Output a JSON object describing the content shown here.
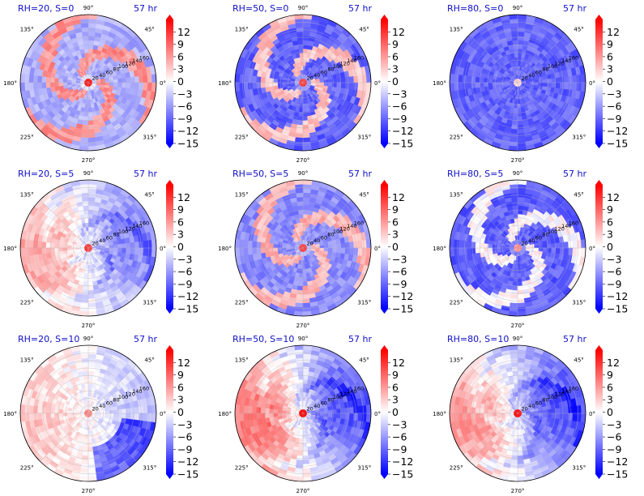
{
  "figure": {
    "time_label": "57 hr",
    "angle_labels": [
      "90°",
      "45°",
      "0°",
      "315°",
      "270°",
      "225°",
      "180°",
      "135°"
    ],
    "radial_labels": [
      "20",
      "40",
      "60",
      "80",
      "100",
      "120",
      "140",
      "160"
    ],
    "colorbar_ticks": [
      "12",
      "9",
      "6",
      "3",
      "0",
      "−3",
      "−6",
      "−9",
      "−12",
      "−15"
    ],
    "colormap": {
      "low": "#0000ff",
      "mid": "#ffffff",
      "high": "#ff0000"
    }
  },
  "chart_data": [
    {
      "type": "heatmap",
      "title": "RH=20, S=0",
      "rh": 20,
      "shear": 0,
      "time": "57 hr",
      "r_range": [
        0,
        180
      ],
      "colorbar_range": [
        -15,
        15
      ],
      "pattern": "spiral",
      "mean": -2,
      "amp": 7
    },
    {
      "type": "heatmap",
      "title": "RH=50, S=0",
      "rh": 50,
      "shear": 0,
      "time": "57 hr",
      "r_range": [
        0,
        180
      ],
      "colorbar_range": [
        -15,
        15
      ],
      "pattern": "spiral",
      "mean": -6,
      "amp": 8
    },
    {
      "type": "heatmap",
      "title": "RH=80, S=0",
      "rh": 80,
      "shear": 0,
      "time": "57 hr",
      "r_range": [
        0,
        180
      ],
      "colorbar_range": [
        -15,
        15
      ],
      "pattern": "core",
      "mean": -9,
      "amp": 5
    },
    {
      "type": "heatmap",
      "title": "RH=20, S=5",
      "rh": 20,
      "shear": 5,
      "time": "57 hr",
      "r_range": [
        0,
        180
      ],
      "colorbar_range": [
        -15,
        15
      ],
      "pattern": "dipole",
      "mean": -1,
      "amp": 6
    },
    {
      "type": "heatmap",
      "title": "RH=50, S=5",
      "rh": 50,
      "shear": 5,
      "time": "57 hr",
      "r_range": [
        0,
        180
      ],
      "colorbar_range": [
        -15,
        15
      ],
      "pattern": "spiral",
      "mean": -4,
      "amp": 7
    },
    {
      "type": "heatmap",
      "title": "RH=80, S=5",
      "rh": 80,
      "shear": 5,
      "time": "57 hr",
      "r_range": [
        0,
        180
      ],
      "colorbar_range": [
        -15,
        15
      ],
      "pattern": "spiral",
      "mean": -7,
      "amp": 6
    },
    {
      "type": "heatmap",
      "title": "RH=20, S=10",
      "rh": 20,
      "shear": 10,
      "time": "57 hr",
      "r_range": [
        0,
        180
      ],
      "colorbar_range": [
        -15,
        15
      ],
      "pattern": "weakdipole",
      "mean": 0,
      "amp": 3
    },
    {
      "type": "heatmap",
      "title": "RH=50, S=10",
      "rh": 50,
      "shear": 10,
      "time": "57 hr",
      "r_range": [
        0,
        180
      ],
      "colorbar_range": [
        -15,
        15
      ],
      "pattern": "dipole",
      "mean": -1,
      "amp": 9
    },
    {
      "type": "heatmap",
      "title": "RH=80, S=10",
      "rh": 80,
      "shear": 10,
      "time": "57 hr",
      "r_range": [
        0,
        180
      ],
      "colorbar_range": [
        -15,
        15
      ],
      "pattern": "dipole",
      "mean": -2,
      "amp": 8
    }
  ]
}
